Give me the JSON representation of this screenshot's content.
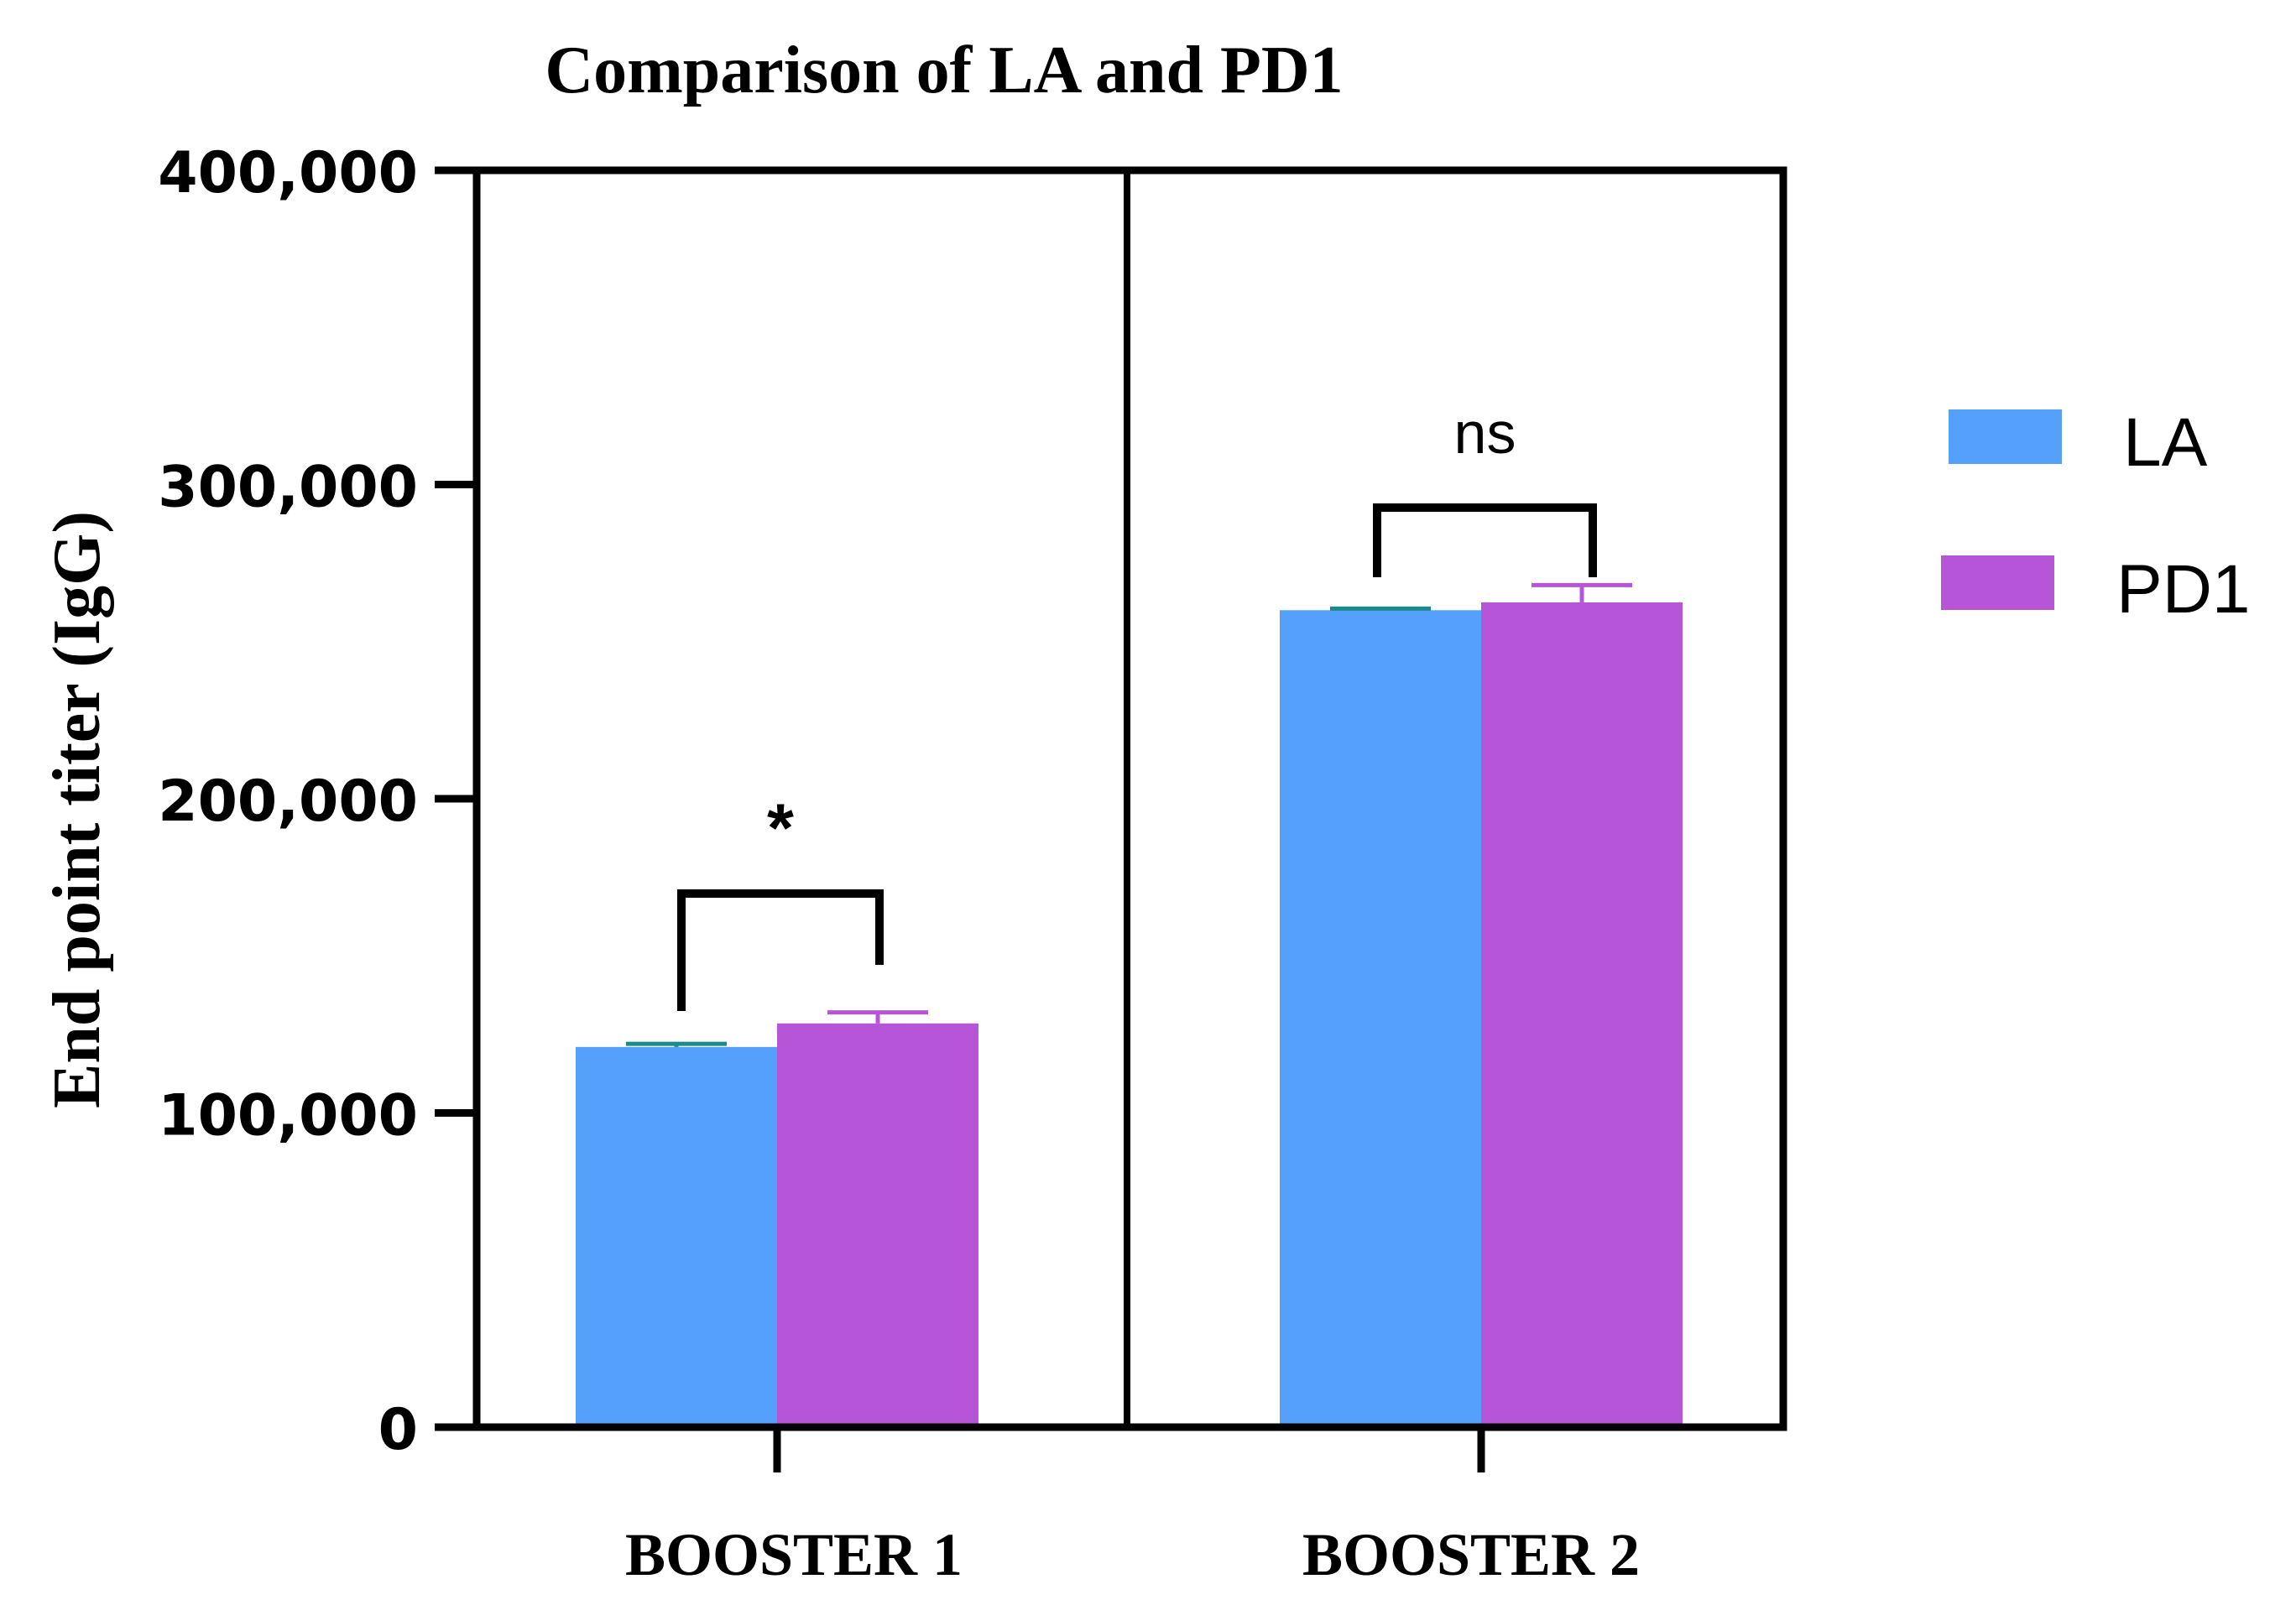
{
  "chart_data": {
    "type": "bar",
    "title": "Comparison of LA and PD1",
    "xlabel": "",
    "ylabel": "End point titer (IgG)",
    "ylim": [
      0,
      400000
    ],
    "yticks": [
      0,
      100000,
      200000,
      300000,
      400000
    ],
    "ytick_labels": [
      "0",
      "100,000",
      "200,000",
      "300,000",
      "400,000"
    ],
    "categories": [
      "BOOSTER 1",
      "BOOSTER 2"
    ],
    "series": [
      {
        "name": "LA",
        "color": "#55a0fb",
        "values": [
          121000,
          260000
        ],
        "errors": [
          1000,
          500
        ]
      },
      {
        "name": "PD1",
        "color": "#b755d8",
        "values": [
          128500,
          262500
        ],
        "errors": [
          3500,
          5500
        ]
      }
    ],
    "significance": [
      {
        "category": "BOOSTER 1",
        "label": "*"
      },
      {
        "category": "BOOSTER 2",
        "label": "ns"
      }
    ],
    "legend_position": "right",
    "grid": false
  }
}
